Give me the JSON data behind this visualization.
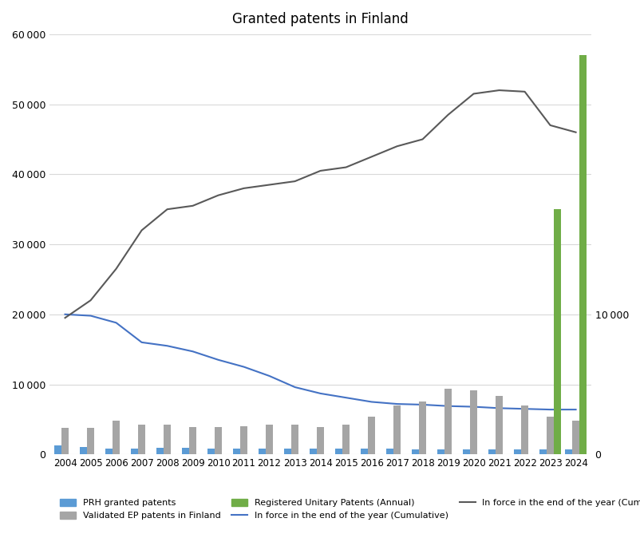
{
  "title": "Granted patents in Finland",
  "years": [
    2004,
    2005,
    2006,
    2007,
    2008,
    2009,
    2010,
    2011,
    2012,
    2013,
    2014,
    2015,
    2016,
    2017,
    2018,
    2019,
    2020,
    2021,
    2022,
    2023,
    2024
  ],
  "prh_granted": [
    650,
    530,
    430,
    430,
    480,
    460,
    430,
    430,
    390,
    400,
    430,
    430,
    430,
    430,
    380,
    340,
    380,
    350,
    360,
    370,
    380
  ],
  "ep_validated": [
    1900,
    1900,
    2400,
    2100,
    2100,
    1950,
    1950,
    2000,
    2100,
    2100,
    1950,
    2100,
    2700,
    3500,
    3800,
    4700,
    4600,
    4200,
    3500,
    2700,
    2400
  ],
  "unitary_annual": [
    0,
    0,
    0,
    0,
    0,
    0,
    0,
    0,
    0,
    0,
    0,
    0,
    0,
    0,
    0,
    0,
    0,
    0,
    0,
    17500,
    28500
  ],
  "force_blue": [
    20000,
    19800,
    18800,
    16000,
    15500,
    14700,
    13500,
    12500,
    11200,
    9600,
    8700,
    8100,
    7500,
    7200,
    7100,
    6900,
    6800,
    6600,
    6500,
    6400,
    6400
  ],
  "force_gray": [
    19500,
    22000,
    26500,
    32000,
    35000,
    35500,
    37000,
    38000,
    38500,
    39000,
    40500,
    41000,
    42500,
    44000,
    45000,
    48500,
    51500,
    52000,
    51800,
    47000,
    46000
  ],
  "left_ylim": [
    0,
    60000
  ],
  "left_yticks": [
    0,
    10000,
    20000,
    30000,
    40000,
    50000,
    60000
  ],
  "right_ylim": [
    0,
    30000
  ],
  "right_yticks": [
    0,
    10000
  ],
  "bar_width": 0.28,
  "prh_color": "#5b9bd5",
  "ep_color": "#a5a5a5",
  "unitary_color": "#70ad47",
  "force_blue_color": "#4472c4",
  "force_gray_color": "#595959",
  "bg_color": "#ffffff",
  "grid_color": "#d9d9d9",
  "legend_labels": [
    "PRH granted patents",
    "Validated EP patents in Finland",
    "Registered Unitary Patents (Annual)",
    "In force in the end of the year (Cumulative)",
    "In force in the end of the year (Cumulative)"
  ]
}
